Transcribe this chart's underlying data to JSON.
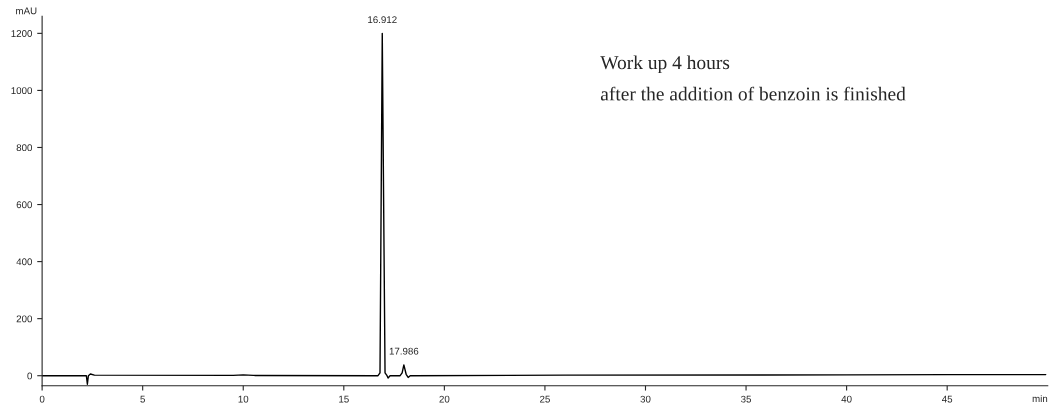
{
  "chart_data": {
    "type": "line",
    "xlabel": "min",
    "ylabel": "mAU",
    "x": [
      0,
      2.2,
      2.25,
      2.3,
      2.4,
      2.6,
      9.5,
      10,
      10.5,
      16.7,
      16.8,
      16.912,
      17.05,
      17.15,
      17.2,
      17.3,
      17.8,
      17.9,
      17.986,
      18.1,
      18.2,
      18.3,
      26,
      40,
      45,
      49.9
    ],
    "series": [
      {
        "color": "#000000",
        "values": [
          0,
          0,
          -30,
          0,
          6,
          2,
          1,
          3,
          1,
          0,
          10,
          1200,
          10,
          0,
          -8,
          0,
          0,
          10,
          38,
          5,
          -6,
          0,
          2,
          3,
          4,
          4
        ]
      }
    ],
    "xlim": [
      0,
      50
    ],
    "xticks": [
      0,
      5,
      10,
      15,
      20,
      25,
      30,
      35,
      40,
      45
    ],
    "ylim": [
      -35,
      1260
    ],
    "yticks": [
      0,
      200,
      400,
      600,
      800,
      1000,
      1200
    ],
    "grid": false,
    "legend": false,
    "marker": "none",
    "line_style": "solid",
    "annotations": [
      {
        "text": "16.912",
        "x": 16.912,
        "y": 1200
      },
      {
        "text": "17.986",
        "x": 17.986,
        "y": 38
      },
      "Work up 4 hours",
      "after the addition of benzoin is finished"
    ]
  }
}
